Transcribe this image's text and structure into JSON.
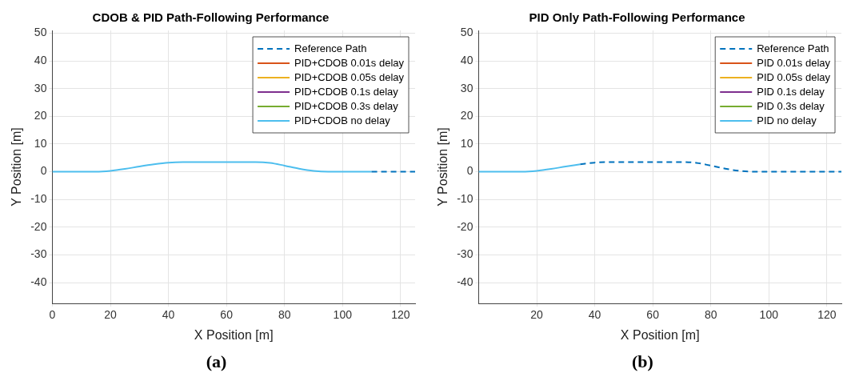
{
  "chart_data": [
    {
      "type": "line",
      "title": "CDOB & PID Path-Following Performance",
      "xlabel": "X Position [m]",
      "ylabel": "Y Position [m]",
      "annotations": [
        "(a)"
      ],
      "xlim": [
        0,
        125
      ],
      "ylim": [
        -47.5,
        51
      ],
      "xticks": [
        0,
        20,
        40,
        60,
        80,
        100,
        120
      ],
      "yticks": [
        -40,
        -30,
        -20,
        -10,
        0,
        10,
        20,
        30,
        40,
        50
      ],
      "grid": true,
      "legend": "top right",
      "marker": "none",
      "series": [
        {
          "name": "Reference Path",
          "color": "#0072bd",
          "line_style": "dashed",
          "x": [
            110,
            125
          ],
          "values": [
            0,
            0
          ]
        },
        {
          "name": "PID+CDOB 0.01s delay",
          "color": "#d95319",
          "line_style": "solid"
        },
        {
          "name": "PID+CDOB 0.05s delay",
          "color": "#edb120",
          "line_style": "solid"
        },
        {
          "name": "PID+CDOB 0.1s delay",
          "color": "#7e2f8e",
          "line_style": "solid"
        },
        {
          "name": "PID+CDOB 0.3s delay",
          "color": "#77ac30",
          "line_style": "solid"
        },
        {
          "name": "PID+CDOB no delay",
          "color": "#4dbeee",
          "line_style": "solid",
          "x": [
            0,
            15,
            20,
            25,
            30,
            35,
            40,
            45,
            70,
            75,
            80,
            85,
            90,
            95,
            110
          ],
          "values": [
            0,
            0,
            0.3,
            1,
            1.9,
            2.7,
            3.3,
            3.5,
            3.5,
            3.2,
            2.2,
            1.1,
            0.3,
            0,
            0
          ]
        }
      ]
    },
    {
      "type": "line",
      "title": "PID Only Path-Following Performance",
      "xlabel": "X Position [m]",
      "ylabel": "Y Position [m]",
      "annotations": [
        "(b)"
      ],
      "xlim": [
        0,
        125
      ],
      "ylim": [
        -47.5,
        51
      ],
      "xticks": [
        20,
        40,
        60,
        80,
        100,
        120
      ],
      "yticks": [
        -40,
        -30,
        -20,
        -10,
        0,
        10,
        20,
        30,
        40,
        50
      ],
      "grid": true,
      "legend": "top right",
      "marker": "none",
      "series": [
        {
          "name": "Reference Path",
          "color": "#0072bd",
          "line_style": "dashed",
          "x": [
            35,
            40,
            45,
            70,
            75,
            80,
            85,
            90,
            95,
            125
          ],
          "values": [
            2.7,
            3.3,
            3.5,
            3.5,
            3.2,
            2.2,
            1.1,
            0.3,
            0,
            0
          ]
        },
        {
          "name": "PID 0.01s delay",
          "color": "#d95319",
          "line_style": "solid"
        },
        {
          "name": "PID 0.05s delay",
          "color": "#edb120",
          "line_style": "solid"
        },
        {
          "name": "PID 0.1s delay",
          "color": "#7e2f8e",
          "line_style": "solid"
        },
        {
          "name": "PID 0.3s delay",
          "color": "#77ac30",
          "line_style": "solid"
        },
        {
          "name": "PID no delay",
          "color": "#4dbeee",
          "line_style": "solid",
          "x": [
            0,
            15,
            20,
            25,
            30,
            35
          ],
          "values": [
            0,
            0,
            0.3,
            1,
            1.9,
            2.7
          ]
        }
      ]
    }
  ]
}
